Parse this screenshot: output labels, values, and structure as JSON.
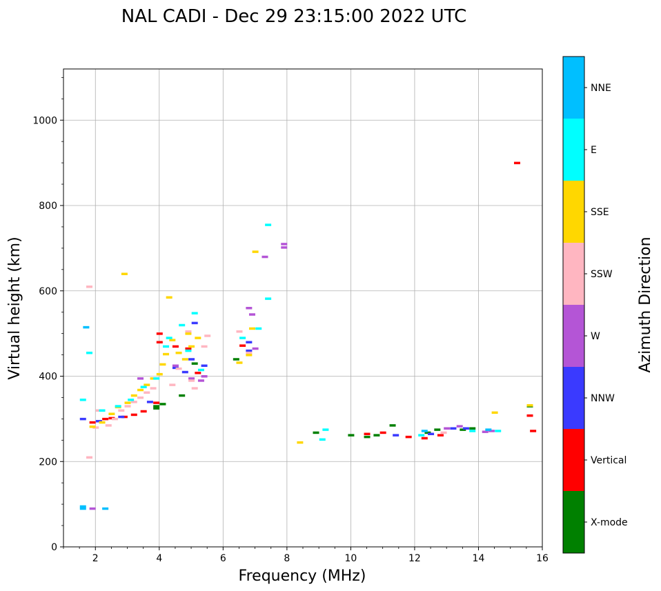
{
  "chart_data": {
    "type": "scatter",
    "title": "NAL CADI - Dec 29 23:15:00 2022 UTC",
    "xlabel": "Frequency (MHz)",
    "ylabel": "Virtual height (km)",
    "xlim": [
      1,
      16
    ],
    "ylim": [
      0,
      1120
    ],
    "xticks": [
      2,
      4,
      6,
      8,
      10,
      12,
      14,
      16
    ],
    "xtick_labels": [
      "2",
      "4",
      "6",
      "8",
      "10",
      "12",
      "14",
      "16"
    ],
    "yticks": [
      0,
      200,
      400,
      600,
      800,
      1000
    ],
    "ytick_labels": [
      "0",
      "200",
      "400",
      "600",
      "800",
      "1000"
    ],
    "grid": true,
    "colorbar": {
      "label": "Azimuth Direction",
      "categories": [
        {
          "name": "X-mode",
          "color": "#008000"
        },
        {
          "name": "Vertical",
          "color": "#ff0000"
        },
        {
          "name": "NNW",
          "color": "#3a3aff"
        },
        {
          "name": "W",
          "color": "#b455d6"
        },
        {
          "name": "SSW",
          "color": "#ffb6c1"
        },
        {
          "name": "SSE",
          "color": "#ffd700"
        },
        {
          "name": "E",
          "color": "#00ffff"
        },
        {
          "name": "NNE",
          "color": "#00bfff"
        }
      ]
    },
    "series": [
      {
        "name": "X-mode",
        "points": [
          [
            3.9,
            325
          ],
          [
            3.9,
            330
          ],
          [
            4.1,
            335
          ],
          [
            4.7,
            355
          ],
          [
            5.1,
            430
          ],
          [
            6.4,
            440
          ],
          [
            8.9,
            268
          ],
          [
            10.0,
            262
          ],
          [
            10.5,
            258
          ],
          [
            10.8,
            262
          ],
          [
            11.3,
            285
          ],
          [
            12.4,
            268
          ],
          [
            12.7,
            275
          ],
          [
            13.5,
            275
          ],
          [
            13.8,
            278
          ],
          [
            15.6,
            330
          ]
        ]
      },
      {
        "name": "Vertical",
        "points": [
          [
            1.9,
            292
          ],
          [
            2.3,
            300
          ],
          [
            2.5,
            302
          ],
          [
            2.9,
            305
          ],
          [
            3.2,
            310
          ],
          [
            3.5,
            318
          ],
          [
            3.9,
            338
          ],
          [
            4.0,
            480
          ],
          [
            4.0,
            500
          ],
          [
            4.5,
            470
          ],
          [
            4.9,
            465
          ],
          [
            5.2,
            408
          ],
          [
            6.6,
            472
          ],
          [
            10.5,
            265
          ],
          [
            11.0,
            268
          ],
          [
            11.8,
            258
          ],
          [
            12.3,
            255
          ],
          [
            12.8,
            262
          ],
          [
            15.6,
            308
          ],
          [
            15.7,
            272
          ],
          [
            15.2,
            900
          ]
        ]
      },
      {
        "name": "NNW",
        "points": [
          [
            1.6,
            300
          ],
          [
            2.1,
            295
          ],
          [
            2.8,
            305
          ],
          [
            3.7,
            340
          ],
          [
            4.5,
            420
          ],
          [
            4.8,
            410
          ],
          [
            5.0,
            440
          ],
          [
            5.1,
            525
          ],
          [
            5.4,
            425
          ],
          [
            6.8,
            460
          ],
          [
            6.8,
            480
          ],
          [
            11.4,
            262
          ],
          [
            12.5,
            265
          ],
          [
            13.2,
            278
          ],
          [
            13.6,
            278
          ]
        ]
      },
      {
        "name": "W",
        "points": [
          [
            1.9,
            90
          ],
          [
            3.4,
            395
          ],
          [
            4.5,
            425
          ],
          [
            5.0,
            395
          ],
          [
            5.3,
            390
          ],
          [
            5.4,
            400
          ],
          [
            6.8,
            560
          ],
          [
            6.9,
            545
          ],
          [
            7.0,
            465
          ],
          [
            7.3,
            680
          ],
          [
            7.9,
            710
          ],
          [
            7.9,
            702
          ],
          [
            13.0,
            278
          ],
          [
            13.4,
            283
          ],
          [
            14.2,
            270
          ],
          [
            14.4,
            272
          ]
        ]
      },
      {
        "name": "SSW",
        "points": [
          [
            1.8,
            210
          ],
          [
            1.8,
            610
          ],
          [
            2.0,
            280
          ],
          [
            2.1,
            320
          ],
          [
            2.4,
            285
          ],
          [
            2.6,
            300
          ],
          [
            2.8,
            320
          ],
          [
            3.0,
            330
          ],
          [
            3.2,
            340
          ],
          [
            3.4,
            350
          ],
          [
            3.6,
            362
          ],
          [
            3.8,
            372
          ],
          [
            4.4,
            380
          ],
          [
            4.6,
            418
          ],
          [
            4.9,
            505
          ],
          [
            5.0,
            390
          ],
          [
            5.1,
            372
          ],
          [
            5.4,
            470
          ],
          [
            5.5,
            495
          ],
          [
            6.5,
            505
          ],
          [
            6.8,
            455
          ],
          [
            12.9,
            268
          ]
        ]
      },
      {
        "name": "SSE",
        "points": [
          [
            1.9,
            282
          ],
          [
            2.2,
            292
          ],
          [
            2.5,
            312
          ],
          [
            2.7,
            328
          ],
          [
            2.9,
            640
          ],
          [
            3.0,
            338
          ],
          [
            3.2,
            355
          ],
          [
            3.4,
            368
          ],
          [
            3.6,
            380
          ],
          [
            3.8,
            395
          ],
          [
            4.0,
            405
          ],
          [
            4.1,
            428
          ],
          [
            4.2,
            452
          ],
          [
            4.3,
            585
          ],
          [
            4.4,
            485
          ],
          [
            4.6,
            455
          ],
          [
            4.8,
            440
          ],
          [
            4.9,
            500
          ],
          [
            5.0,
            470
          ],
          [
            5.2,
            490
          ],
          [
            6.5,
            432
          ],
          [
            6.8,
            450
          ],
          [
            6.9,
            512
          ],
          [
            7.0,
            692
          ],
          [
            8.4,
            245
          ],
          [
            14.5,
            315
          ],
          [
            15.6,
            332
          ]
        ]
      },
      {
        "name": "E",
        "points": [
          [
            1.6,
            345
          ],
          [
            1.8,
            455
          ],
          [
            2.2,
            320
          ],
          [
            2.7,
            330
          ],
          [
            3.1,
            345
          ],
          [
            3.5,
            375
          ],
          [
            3.9,
            395
          ],
          [
            4.2,
            470
          ],
          [
            4.3,
            490
          ],
          [
            4.7,
            520
          ],
          [
            4.9,
            460
          ],
          [
            5.1,
            548
          ],
          [
            5.3,
            415
          ],
          [
            6.6,
            490
          ],
          [
            7.1,
            512
          ],
          [
            7.4,
            755
          ],
          [
            7.4,
            582
          ],
          [
            9.1,
            252
          ],
          [
            9.2,
            275
          ],
          [
            12.2,
            262
          ],
          [
            13.8,
            272
          ],
          [
            14.6,
            272
          ]
        ]
      },
      {
        "name": "NNE",
        "points": [
          [
            1.6,
            95
          ],
          [
            1.6,
            90
          ],
          [
            2.3,
            90
          ],
          [
            1.7,
            515
          ],
          [
            12.3,
            272
          ],
          [
            14.3,
            275
          ]
        ]
      }
    ]
  }
}
